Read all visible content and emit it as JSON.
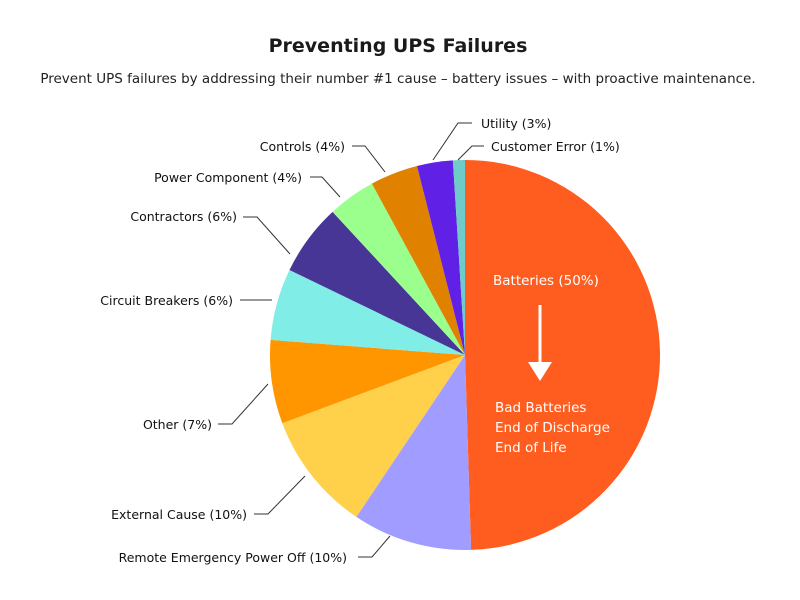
{
  "chart_data": {
    "type": "pie",
    "title": "Preventing UPS Failures",
    "subtitle": "Prevent UPS failures by addressing  their number #1 cause – battery issues –  with proactive maintenance.",
    "start": "top",
    "direction": "clockwise",
    "slices": [
      {
        "label": "Batteries (50%)",
        "value": 50,
        "color": "#FF5C1F"
      },
      {
        "label": "Remote Emergency Power Off (10%)",
        "value": 10,
        "color": "#A19CFF"
      },
      {
        "label": "External Cause (10%)",
        "value": 10,
        "color": "#FFD04A"
      },
      {
        "label": "Other (7%)",
        "value": 7,
        "color": "#FF9600"
      },
      {
        "label": "Circuit Breakers (6%)",
        "value": 6,
        "color": "#80EDE6"
      },
      {
        "label": "Contractors (6%)",
        "value": 6,
        "color": "#483697"
      },
      {
        "label": "Power Component (4%)",
        "value": 4,
        "color": "#9BFF8E"
      },
      {
        "label": "Controls (4%)",
        "value": 4,
        "color": "#E08200"
      },
      {
        "label": "Utility (3%)",
        "value": 3,
        "color": "#6020E6"
      },
      {
        "label": "Customer Error (1%)",
        "value": 1,
        "color": "#6ECBC8"
      }
    ],
    "batteries_causes": [
      "Bad Batteries",
      "End of Discharge",
      "End of Life"
    ]
  }
}
